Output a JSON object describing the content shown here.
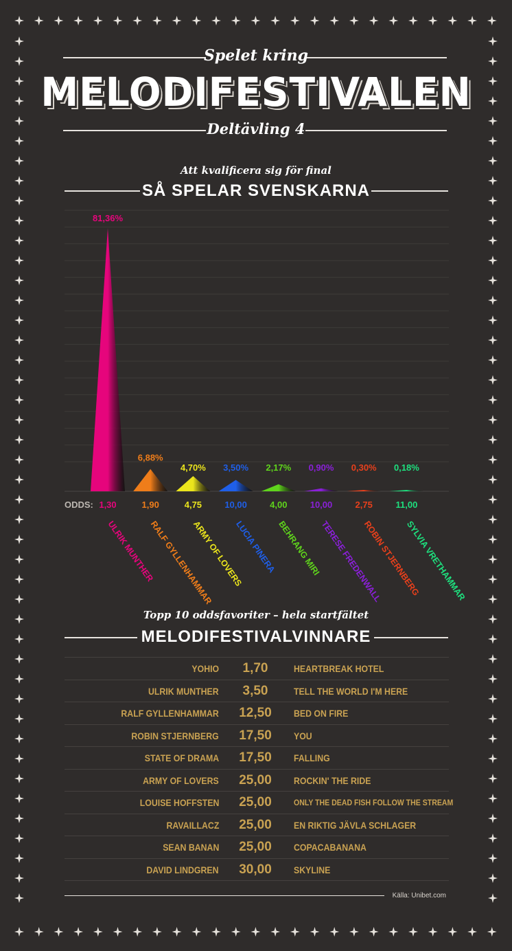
{
  "header": {
    "pre_title": "Spelet kring",
    "title": "MELODIFESTIVALEN",
    "subtitle": "Deltävling 4"
  },
  "chart_section": {
    "kicker": "Att kvalificera sig för final",
    "title": "SÅ SPELAR SVENSKARNA",
    "odds_label": "ODDS:"
  },
  "chart_data": {
    "type": "bar",
    "categories": [
      "ULRIK MUNTHER",
      "RALF GYLLENHAMMAR",
      "ARMY OF LOVERS",
      "LUCIA PINERA",
      "BEHRANG MIRI",
      "TERESE FREDENWALL",
      "ROBIN STJERNBERG",
      "SYLVIA VRETHAMMAR"
    ],
    "values": [
      81.36,
      6.88,
      4.7,
      3.5,
      2.17,
      0.9,
      0.3,
      0.18
    ],
    "value_labels": [
      "81,36%",
      "6,88%",
      "4,70%",
      "3,50%",
      "2,17%",
      "0,90%",
      "0,30%",
      "0,18%"
    ],
    "odds": [
      "1,30",
      "1,90",
      "4,75",
      "10,00",
      "4,00",
      "10,00",
      "2,75",
      "11,00"
    ],
    "colors": [
      "#e6057c",
      "#ef7d1a",
      "#ebe51c",
      "#1f5fe8",
      "#5fd41c",
      "#8a20d8",
      "#e8401c",
      "#1ee07e"
    ],
    "ylim": [
      0,
      81.36
    ]
  },
  "ranking_section": {
    "kicker": "Topp 10 oddsfavoriter – hela startfältet",
    "title": "MELODIFESTIVALVINNARE",
    "rows": [
      {
        "artist": "YOHIO",
        "odds": "1,70",
        "song": "HEARTBREAK HOTEL"
      },
      {
        "artist": "ULRIK MUNTHER",
        "odds": "3,50",
        "song": "TELL THE WORLD I'M HERE"
      },
      {
        "artist": "RALF GYLLENHAMMAR",
        "odds": "12,50",
        "song": "BED ON FIRE"
      },
      {
        "artist": "ROBIN STJERNBERG",
        "odds": "17,50",
        "song": "YOU"
      },
      {
        "artist": "STATE OF DRAMA",
        "odds": "17,50",
        "song": "FALLING"
      },
      {
        "artist": "ARMY OF LOVERS",
        "odds": "25,00",
        "song": "ROCKIN' THE RIDE"
      },
      {
        "artist": "LOUISE HOFFSTEN",
        "odds": "25,00",
        "song": "ONLY THE DEAD FISH FOLLOW THE STREAM"
      },
      {
        "artist": "RAVAILLACZ",
        "odds": "25,00",
        "song": "EN RIKTIG JÄVLA SCHLAGER"
      },
      {
        "artist": "SEAN BANAN",
        "odds": "25,00",
        "song": "COPACABANANA"
      },
      {
        "artist": "DAVID LINDGREN",
        "odds": "30,00",
        "song": "SKYLINE"
      }
    ]
  },
  "source": "Källa: Unibet.com",
  "colors": {
    "background": "#2f2c2b",
    "table_text": "#c9a252",
    "rule": "#e8e4df"
  }
}
